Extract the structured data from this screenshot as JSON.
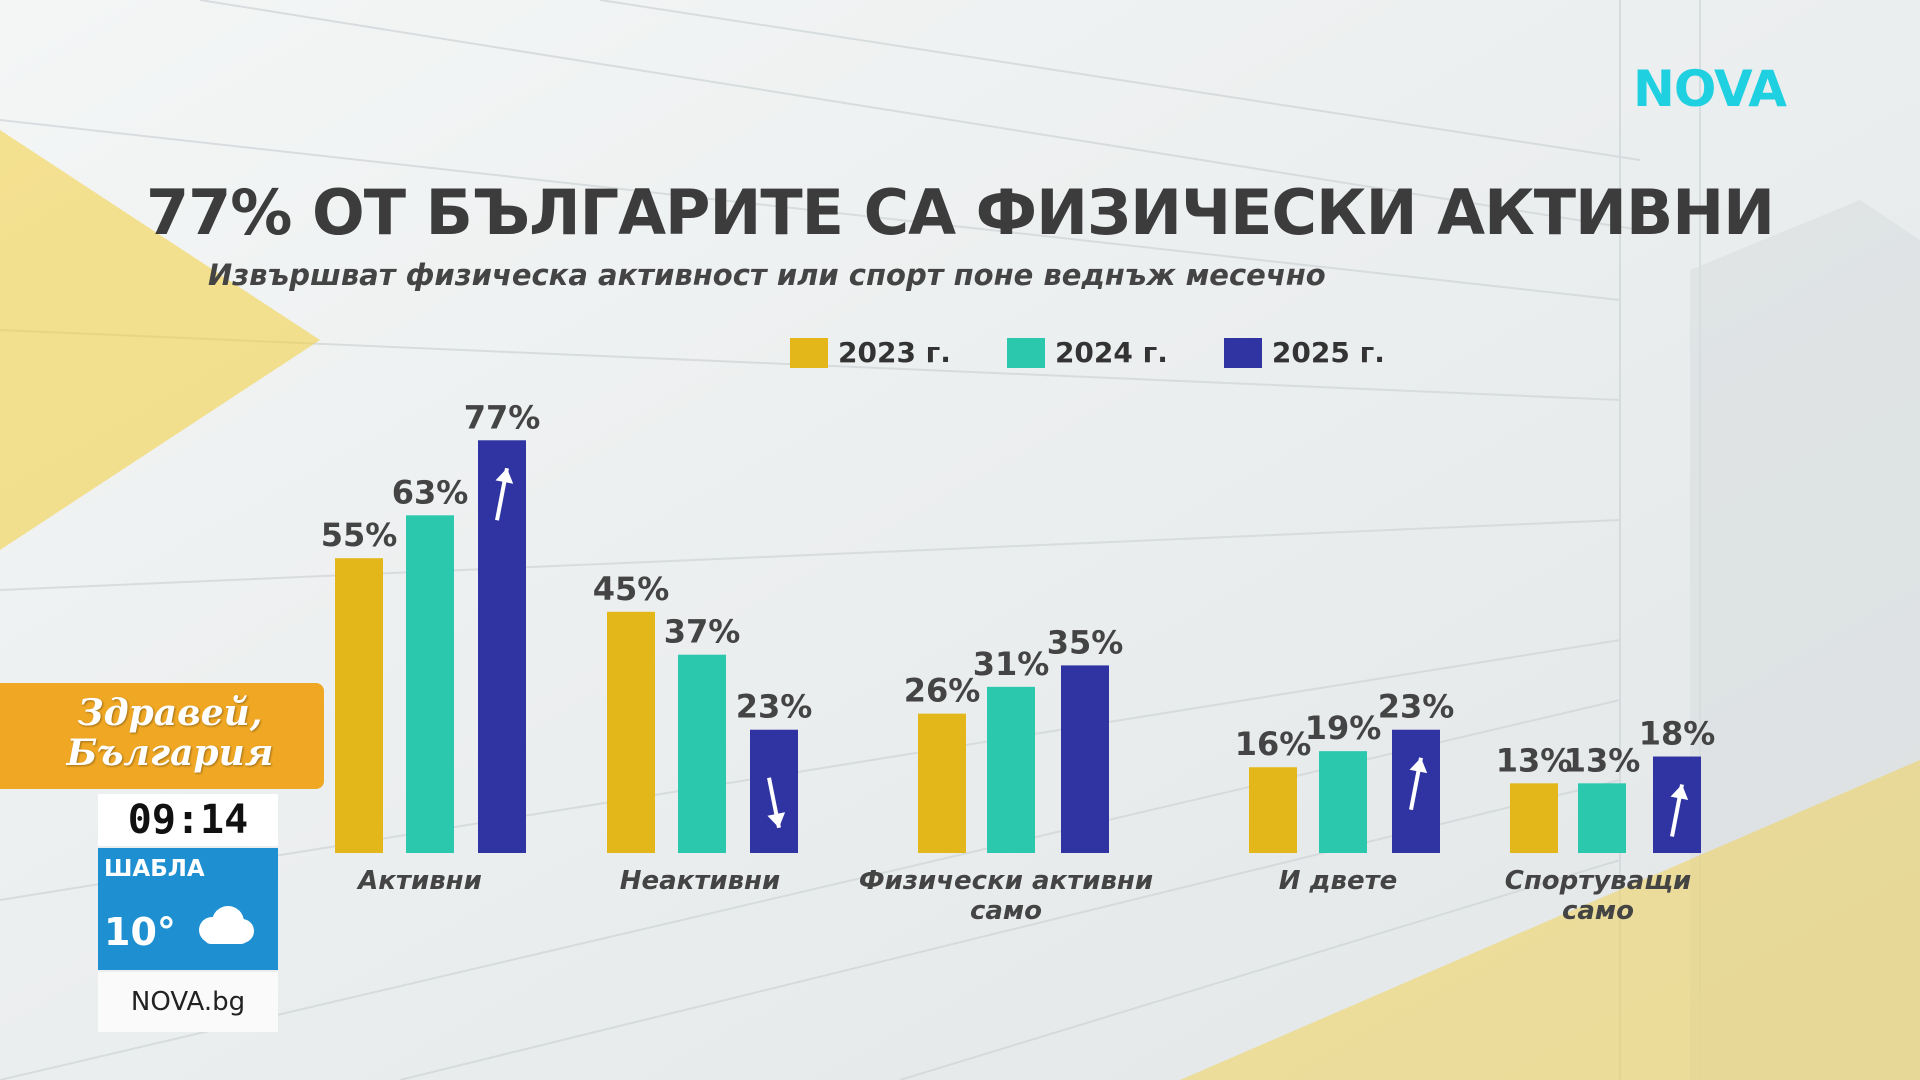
{
  "logo": "NOVA",
  "chart_data": {
    "type": "bar",
    "title": "77% ОТ БЪЛГАРИТЕ СА ФИЗИЧЕСКИ АКТИВНИ",
    "subtitle": "Извършват физическа активност или спорт поне веднъж месечно",
    "categories": [
      [
        "Активни"
      ],
      [
        "Неактивни"
      ],
      [
        "Физически активни",
        "само"
      ],
      [
        "И двете"
      ],
      [
        "Спортуващи",
        "само"
      ]
    ],
    "series": [
      {
        "name": "2023 г.",
        "color": "#e3b719",
        "values": [
          55,
          45,
          26,
          16,
          13
        ]
      },
      {
        "name": "2024 г.",
        "color": "#2cc8ae",
        "values": [
          63,
          37,
          31,
          19,
          13
        ]
      },
      {
        "name": "2025 г.",
        "color": "#3034a3",
        "values": [
          77,
          23,
          35,
          23,
          18
        ]
      }
    ],
    "value_suffix": "%",
    "trend_arrows": [
      "up",
      "down",
      "none",
      "up",
      "up"
    ],
    "legend": "top",
    "grid": false
  },
  "overlay": {
    "show_name": "Здравей, България",
    "time": "09:14",
    "city": "ШАБЛА",
    "temperature": "10°",
    "weather_icon": "cloud-icon",
    "site": "NOVA.bg"
  }
}
